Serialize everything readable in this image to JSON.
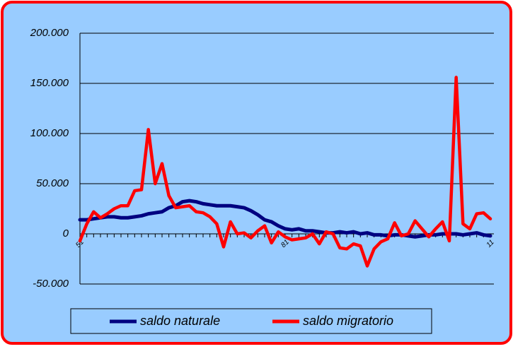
{
  "chart_data": {
    "type": "line",
    "categories": [
      "51",
      null,
      null,
      null,
      null,
      null,
      null,
      null,
      null,
      null,
      null,
      null,
      null,
      null,
      null,
      null,
      null,
      null,
      null,
      null,
      null,
      null,
      null,
      null,
      null,
      null,
      null,
      null,
      null,
      null,
      "81",
      null,
      null,
      null,
      null,
      null,
      null,
      null,
      null,
      null,
      null,
      null,
      null,
      null,
      null,
      null,
      null,
      null,
      null,
      null,
      null,
      null,
      null,
      null,
      null,
      null,
      null,
      null,
      null,
      null,
      "11"
    ],
    "series": [
      {
        "name": "saldo naturale",
        "color": "#000080",
        "values": [
          14000,
          14000,
          15000,
          16000,
          17000,
          17000,
          16000,
          16000,
          17000,
          18000,
          20000,
          21000,
          22000,
          26000,
          28000,
          32000,
          33000,
          32000,
          30000,
          29000,
          28000,
          28000,
          28000,
          27000,
          26000,
          23000,
          19000,
          14000,
          12000,
          8000,
          5000,
          4000,
          5000,
          3000,
          3000,
          2000,
          1000,
          1000,
          2000,
          1000,
          2000,
          0,
          1000,
          -1000,
          -1000,
          -2000,
          -1000,
          -1000,
          -2000,
          -3000,
          -2000,
          -1000,
          -1000,
          0,
          0,
          0,
          -1000,
          0,
          1000,
          -1000,
          -2000
        ]
      },
      {
        "name": "saldo migratorio",
        "color": "#ff0000",
        "values": [
          -7000,
          10000,
          22000,
          16000,
          20000,
          25000,
          28000,
          28000,
          43000,
          44000,
          104000,
          50000,
          70000,
          38000,
          26000,
          27000,
          28000,
          22000,
          21000,
          17000,
          10000,
          -13000,
          12000,
          0,
          1000,
          -4000,
          3000,
          8000,
          -9000,
          2000,
          -3000,
          -6000,
          -5000,
          -4000,
          0,
          -10000,
          2000,
          0,
          -14000,
          -15000,
          -10000,
          -12000,
          -32000,
          -15000,
          -8000,
          -5000,
          11000,
          -2000,
          0,
          13000,
          5000,
          -3000,
          5000,
          12000,
          -7000,
          156000,
          10000,
          5000,
          20000,
          21000,
          15000
        ]
      }
    ],
    "ylim": [
      -50000,
      200000
    ],
    "yticks": [
      {
        "value": -50000,
        "label": "-50.000"
      },
      0,
      {
        "value": 50000,
        "label": "50.000"
      },
      {
        "value": 100000,
        "label": "100.000"
      },
      {
        "value": 150000,
        "label": "150.000"
      },
      {
        "value": 200000,
        "label": "200.000"
      }
    ],
    "grid": true,
    "background": "#99ccff",
    "border_color": "#ff0000",
    "legend": "bottom"
  }
}
